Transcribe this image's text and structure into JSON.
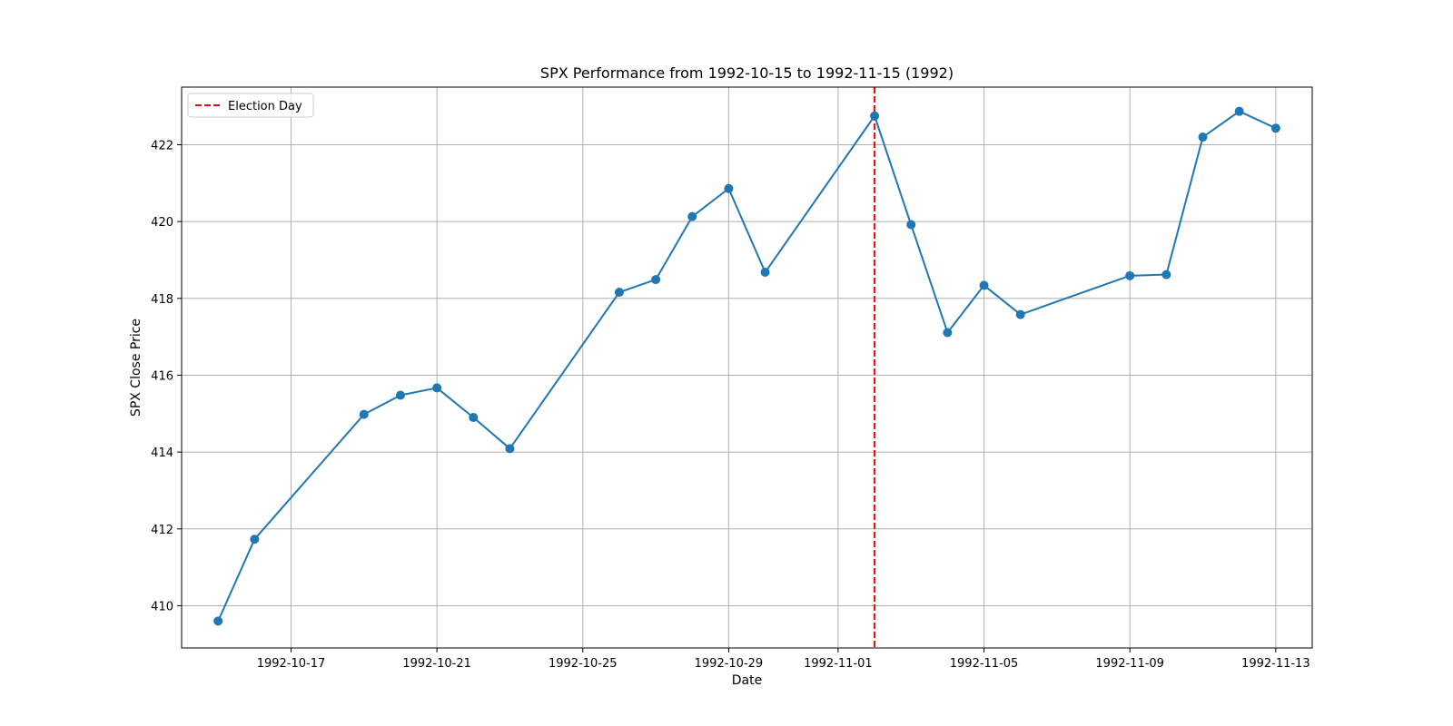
{
  "chart_data": {
    "type": "line",
    "title": "SPX Performance from 1992-10-15 to 1992-11-15 (1992)",
    "xlabel": "Date",
    "ylabel": "SPX Close Price",
    "x_axis_type": "date",
    "xlim": [
      "1992-10-14",
      "1992-11-14"
    ],
    "ylim": [
      408.9,
      423.5
    ],
    "x_ticks": [
      "1992-10-17",
      "1992-10-21",
      "1992-10-25",
      "1992-10-29",
      "1992-11-01",
      "1992-11-05",
      "1992-11-09",
      "1992-11-13"
    ],
    "y_ticks": [
      410,
      412,
      414,
      416,
      418,
      420,
      422
    ],
    "grid": true,
    "legend_position": "upper-left",
    "series": [
      {
        "color": "#1f77b4",
        "marker": "circle",
        "points": [
          {
            "x": "1992-10-15",
            "y": 409.6
          },
          {
            "x": "1992-10-16",
            "y": 411.73
          },
          {
            "x": "1992-10-19",
            "y": 414.98
          },
          {
            "x": "1992-10-20",
            "y": 415.48
          },
          {
            "x": "1992-10-21",
            "y": 415.67
          },
          {
            "x": "1992-10-22",
            "y": 414.9
          },
          {
            "x": "1992-10-23",
            "y": 414.09
          },
          {
            "x": "1992-10-26",
            "y": 418.16
          },
          {
            "x": "1992-10-27",
            "y": 418.49
          },
          {
            "x": "1992-10-28",
            "y": 420.13
          },
          {
            "x": "1992-10-29",
            "y": 420.86
          },
          {
            "x": "1992-10-30",
            "y": 418.68
          },
          {
            "x": "1992-11-02",
            "y": 422.75
          },
          {
            "x": "1992-11-03",
            "y": 419.92
          },
          {
            "x": "1992-11-04",
            "y": 417.11
          },
          {
            "x": "1992-11-05",
            "y": 418.34
          },
          {
            "x": "1992-11-06",
            "y": 417.58
          },
          {
            "x": "1992-11-09",
            "y": 418.59
          },
          {
            "x": "1992-11-10",
            "y": 418.62
          },
          {
            "x": "1992-11-11",
            "y": 422.2
          },
          {
            "x": "1992-11-12",
            "y": 422.87
          },
          {
            "x": "1992-11-13",
            "y": 422.43
          }
        ]
      }
    ],
    "annotations": [
      {
        "type": "vline",
        "x": "1992-11-02",
        "label": "Election Day",
        "color": "#ff0000",
        "style": "dashed"
      }
    ]
  }
}
